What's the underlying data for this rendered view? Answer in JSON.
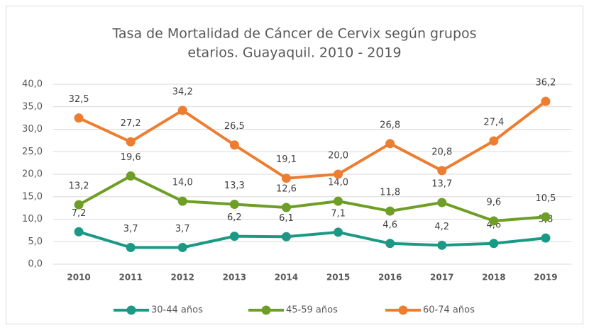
{
  "chart_data": {
    "type": "line",
    "title": [
      "Tasa de Mortalidad de Cáncer de Cervix según grupos",
      "etarios. Guayaquil. 2010 - 2019"
    ],
    "categories": [
      "2010",
      "2011",
      "2012",
      "2013",
      "2014",
      "2015",
      "2016",
      "2017",
      "2018",
      "2019"
    ],
    "series": [
      {
        "name": "30-44 años",
        "color": "#1b9985",
        "values": [
          7.2,
          3.7,
          3.7,
          6.2,
          6.1,
          7.1,
          4.6,
          4.2,
          4.6,
          5.8
        ],
        "value_labels": [
          "7,2",
          "3,7",
          "3,7",
          "6,2",
          "6,1",
          "7,1",
          "4,6",
          "4,2",
          "4,6",
          "5,8"
        ]
      },
      {
        "name": "45-59 años",
        "color": "#6e9e26",
        "values": [
          13.2,
          19.6,
          14.0,
          13.3,
          12.6,
          14.0,
          11.8,
          13.7,
          9.6,
          10.5
        ],
        "value_labels": [
          "13,2",
          "19,6",
          "14,0",
          "13,3",
          "12,6",
          "14,0",
          "11,8",
          "13,7",
          "9,6",
          "10,5"
        ]
      },
      {
        "name": "60-74 años",
        "color": "#ed7d31",
        "values": [
          32.5,
          27.2,
          34.2,
          26.5,
          19.1,
          20.0,
          26.8,
          20.8,
          27.4,
          36.2
        ],
        "value_labels": [
          "32,5",
          "27,2",
          "34,2",
          "26,5",
          "19,1",
          "20,0",
          "26,8",
          "20,8",
          "27,4",
          "36,2"
        ]
      }
    ],
    "ylim": [
      0,
      40
    ],
    "yticks": [
      {
        "value": 0,
        "label": "0,0"
      },
      {
        "value": 5,
        "label": "5,0"
      },
      {
        "value": 10,
        "label": "10,0"
      },
      {
        "value": 15,
        "label": "15,0"
      },
      {
        "value": 20,
        "label": "20,0"
      },
      {
        "value": 25,
        "label": "25,0"
      },
      {
        "value": 30,
        "label": "30,0"
      },
      {
        "value": 35,
        "label": "35,0"
      },
      {
        "value": 40,
        "label": "40,0"
      }
    ],
    "grid": true,
    "legend": "bottom"
  }
}
